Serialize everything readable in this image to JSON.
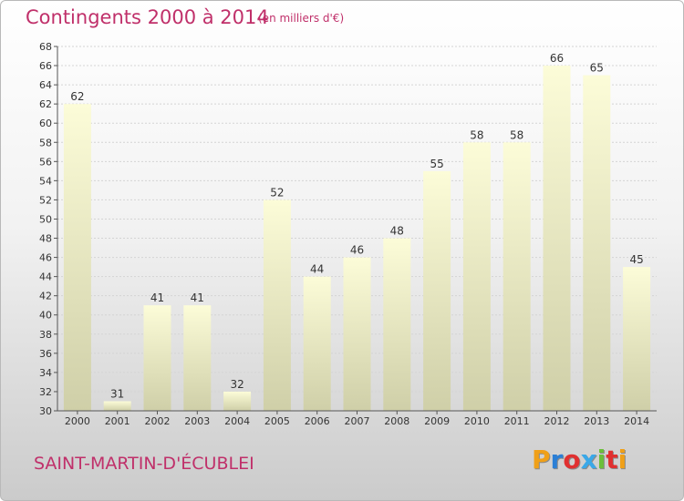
{
  "header": {
    "title": "Contingents 2000 à 2014",
    "subtitle": "(en milliers d'€)"
  },
  "footer": {
    "commune": "SAINT-MARTIN-D'ÉCUBLEI",
    "logo_text": "Proxiti",
    "logo_colors": [
      "#f0a018",
      "#2b7fd6",
      "#e03030",
      "#3aa8e8",
      "#6bbf3a",
      "#e03030",
      "#f0a018"
    ]
  },
  "chart_data": {
    "type": "bar",
    "categories": [
      "2000",
      "2001",
      "2002",
      "2003",
      "2004",
      "2005",
      "2006",
      "2007",
      "2008",
      "2009",
      "2010",
      "2011",
      "2012",
      "2013",
      "2014"
    ],
    "values": [
      62,
      31,
      41,
      41,
      32,
      52,
      44,
      46,
      48,
      55,
      58,
      58,
      66,
      65,
      45
    ],
    "data_labels": [
      "62",
      "31",
      "41",
      "41",
      "32",
      "52",
      "44",
      "46",
      "48",
      "55",
      "58",
      "58",
      "66",
      "65",
      "45"
    ],
    "ylim": [
      30,
      68
    ],
    "yticks": [
      "30",
      "32",
      "34",
      "36",
      "38",
      "40",
      "42",
      "44",
      "46",
      "48",
      "50",
      "52",
      "54",
      "56",
      "58",
      "60",
      "62",
      "64",
      "66",
      "68"
    ],
    "grid": true,
    "bar_color_top": "#fcfcd8",
    "bar_color_bottom": "#cfcfa8",
    "title": "Contingents 2000 à 2014",
    "xlabel": "",
    "ylabel": ""
  }
}
